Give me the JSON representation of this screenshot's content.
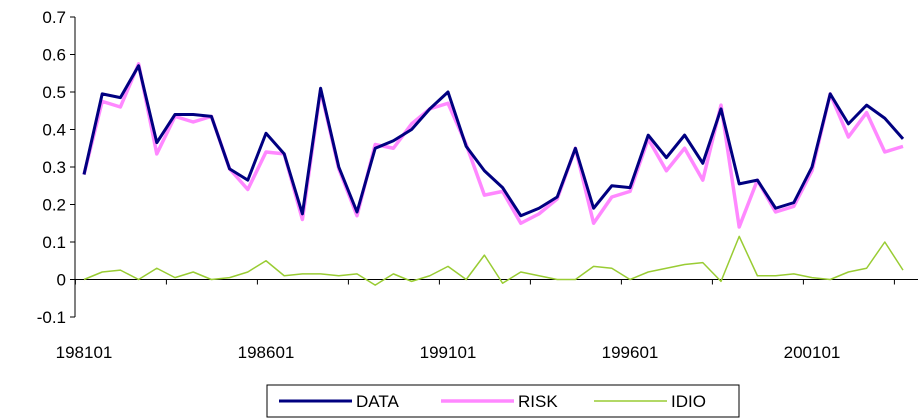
{
  "chart_data": {
    "type": "line",
    "title": "",
    "xlabel": "",
    "ylabel": "",
    "ylim": [
      -0.1,
      0.7
    ],
    "yticks": [
      "-0.1",
      "0",
      "0.1",
      "0.2",
      "0.3",
      "0.4",
      "0.5",
      "0.6",
      "0.7"
    ],
    "xtick_labels": [
      "198101",
      "198601",
      "199101",
      "199601",
      "200101"
    ],
    "xtick_positions": [
      0,
      10,
      20,
      30,
      40
    ],
    "grid": false,
    "legend_position": "bottom-center",
    "series": [
      {
        "name": "DATA",
        "color": "#000080",
        "values": [
          0.28,
          0.495,
          0.485,
          0.57,
          0.365,
          0.44,
          0.44,
          0.435,
          0.295,
          0.265,
          0.39,
          0.335,
          0.175,
          0.51,
          0.3,
          0.18,
          0.35,
          0.37,
          0.4,
          0.455,
          0.5,
          0.355,
          0.29,
          0.245,
          0.17,
          0.19,
          0.22,
          0.35,
          0.19,
          0.25,
          0.245,
          0.385,
          0.325,
          0.385,
          0.31,
          0.455,
          0.255,
          0.265,
          0.19,
          0.205,
          0.3,
          0.495,
          0.415,
          0.465,
          0.43,
          0.375
        ]
      },
      {
        "name": "RISK",
        "color": "#ff88ff",
        "values": [
          0.28,
          0.475,
          0.46,
          0.575,
          0.335,
          0.435,
          0.42,
          0.435,
          0.295,
          0.24,
          0.34,
          0.335,
          0.16,
          0.505,
          0.295,
          0.17,
          0.36,
          0.35,
          0.415,
          0.455,
          0.47,
          0.36,
          0.225,
          0.235,
          0.15,
          0.175,
          0.215,
          0.35,
          0.15,
          0.22,
          0.235,
          0.375,
          0.29,
          0.35,
          0.265,
          0.465,
          0.14,
          0.265,
          0.18,
          0.195,
          0.29,
          0.495,
          0.38,
          0.445,
          0.34,
          0.355
        ]
      },
      {
        "name": "IDIO",
        "color": "#99cc33",
        "values": [
          0.0,
          0.02,
          0.025,
          0.0,
          0.03,
          0.005,
          0.02,
          0.0,
          0.005,
          0.02,
          0.05,
          0.01,
          0.015,
          0.015,
          0.01,
          0.015,
          -0.015,
          0.015,
          -0.005,
          0.01,
          0.035,
          0.0,
          0.065,
          -0.01,
          0.02,
          0.01,
          0.0,
          0.0,
          0.035,
          0.03,
          0.0,
          0.02,
          0.03,
          0.04,
          0.045,
          -0.005,
          0.115,
          0.01,
          0.01,
          0.015,
          0.005,
          0.0,
          0.02,
          0.03,
          0.1,
          0.025
        ]
      }
    ]
  }
}
